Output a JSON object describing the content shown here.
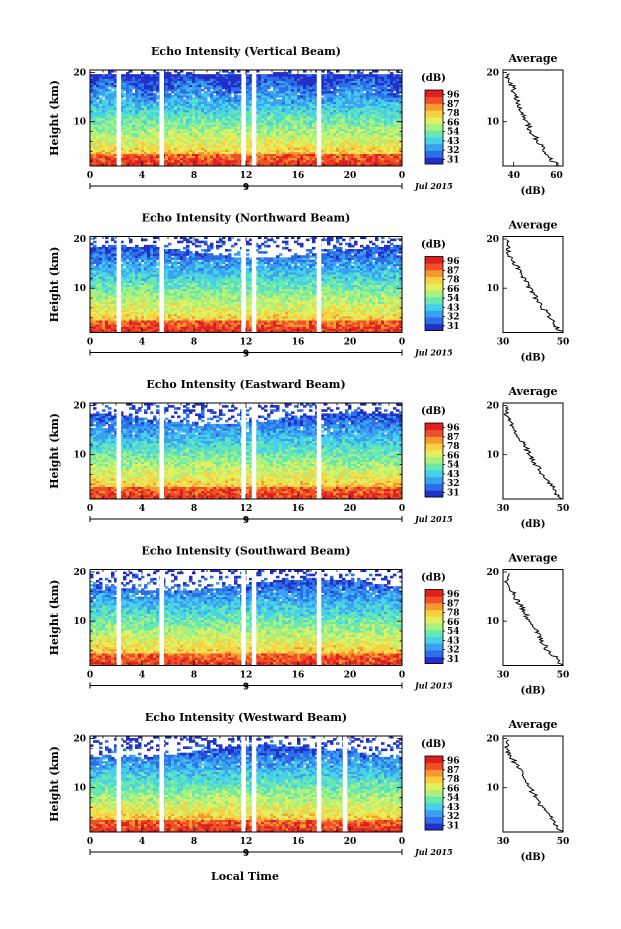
{
  "figure": {
    "xlabel": "Local Time",
    "colorbar_unit": "(dB)",
    "colorbar_ticks": [
      "31",
      "32",
      "43",
      "54",
      "66",
      "78",
      "87",
      "96"
    ],
    "colors": [
      "#2030c8",
      "#2c6ee8",
      "#3aa0f0",
      "#46d0ea",
      "#66e8b0",
      "#a8f080",
      "#e0f060",
      "#f8d040",
      "#f89830",
      "#f05028",
      "#e02020"
    ]
  },
  "chart_data": [
    {
      "type": "heatmap",
      "title": "Echo Intensity (Vertical Beam)",
      "ylabel": "Height (km)",
      "x_ticks": [
        "0",
        "4",
        "8",
        "12",
        "16",
        "20",
        "0"
      ],
      "y_ticks": [
        "10",
        "20"
      ],
      "xlim": [
        0,
        24
      ],
      "ylim": [
        1,
        20.5
      ],
      "date_label": "Jul 2015",
      "day_marker": "9",
      "gaps": [
        2.2,
        5.5,
        11.8,
        12.6,
        17.6
      ],
      "avg": {
        "title": "Average",
        "xlabel": "(dB)",
        "xlim": [
          35,
          63
        ],
        "x_ticks": [
          "40",
          "60"
        ],
        "y_ticks": [
          "10",
          "20"
        ],
        "height": [
          1,
          2,
          3,
          4,
          5,
          6,
          7,
          8,
          9,
          10,
          11,
          12,
          13,
          14,
          15,
          16,
          17,
          18,
          19,
          20
        ],
        "values": [
          62,
          58,
          57,
          54,
          53,
          51,
          50,
          48,
          47,
          46,
          45,
          44,
          43,
          42,
          41,
          40,
          40,
          38,
          37,
          37
        ]
      }
    },
    {
      "type": "heatmap",
      "title": "Echo Intensity (Northward Beam)",
      "ylabel": "Height (km)",
      "x_ticks": [
        "0",
        "4",
        "8",
        "12",
        "16",
        "20",
        "0"
      ],
      "y_ticks": [
        "10",
        "20"
      ],
      "xlim": [
        0,
        24
      ],
      "ylim": [
        1,
        20.5
      ],
      "date_label": "Jul 2015",
      "day_marker": "9",
      "gaps": [
        2.2,
        5.5,
        11.8,
        12.6,
        17.6
      ],
      "avg": {
        "title": "Average",
        "xlabel": "(dB)",
        "xlim": [
          30,
          50
        ],
        "x_ticks": [
          "30",
          "50"
        ],
        "y_ticks": [
          "10",
          "20"
        ],
        "height": [
          1,
          2,
          3,
          4,
          5,
          6,
          7,
          8,
          9,
          10,
          11,
          12,
          13,
          14,
          15,
          16,
          17,
          18,
          19,
          20
        ],
        "values": [
          50,
          48,
          47,
          46,
          45,
          43,
          42,
          41,
          40,
          39,
          38,
          37,
          36,
          35,
          34,
          33,
          32,
          32,
          31,
          32
        ]
      }
    },
    {
      "type": "heatmap",
      "title": "Echo Intensity (Eastward Beam)",
      "ylabel": "Height (km)",
      "x_ticks": [
        "0",
        "4",
        "8",
        "12",
        "16",
        "20",
        "0"
      ],
      "y_ticks": [
        "10",
        "20"
      ],
      "xlim": [
        0,
        24
      ],
      "ylim": [
        1,
        20.5
      ],
      "date_label": "Jul 2015",
      "day_marker": "9",
      "gaps": [
        2.2,
        5.5,
        11.8,
        12.6,
        17.6
      ],
      "avg": {
        "title": "Average",
        "xlabel": "(dB)",
        "xlim": [
          30,
          50
        ],
        "x_ticks": [
          "30",
          "50"
        ],
        "y_ticks": [
          "10",
          "20"
        ],
        "height": [
          1,
          2,
          3,
          4,
          5,
          6,
          7,
          8,
          9,
          10,
          11,
          12,
          13,
          14,
          15,
          16,
          17,
          18,
          19,
          20
        ],
        "values": [
          50,
          48,
          47,
          46,
          44,
          43,
          42,
          41,
          40,
          39,
          38,
          37,
          36,
          35,
          34,
          33,
          32,
          31,
          31,
          32
        ]
      }
    },
    {
      "type": "heatmap",
      "title": "Echo Intensity (Southward Beam)",
      "ylabel": "Height (km)",
      "x_ticks": [
        "0",
        "4",
        "8",
        "12",
        "16",
        "20",
        "0"
      ],
      "y_ticks": [
        "10",
        "20"
      ],
      "xlim": [
        0,
        24
      ],
      "ylim": [
        1,
        20.5
      ],
      "date_label": "Jul 2015",
      "day_marker": "9",
      "gaps": [
        2.2,
        5.5,
        11.8,
        12.6,
        17.6
      ],
      "avg": {
        "title": "Average",
        "xlabel": "(dB)",
        "xlim": [
          30,
          50
        ],
        "x_ticks": [
          "30",
          "50"
        ],
        "y_ticks": [
          "10",
          "20"
        ],
        "height": [
          1,
          2,
          3,
          4,
          5,
          6,
          7,
          8,
          9,
          10,
          11,
          12,
          13,
          14,
          15,
          16,
          17,
          18,
          19,
          20
        ],
        "values": [
          50,
          48,
          47,
          45,
          44,
          43,
          42,
          41,
          40,
          39,
          38,
          37,
          36,
          35,
          34,
          33,
          32,
          31,
          31,
          32
        ]
      }
    },
    {
      "type": "heatmap",
      "title": "Echo Intensity (Westward Beam)",
      "ylabel": "Height (km)",
      "x_ticks": [
        "0",
        "4",
        "8",
        "12",
        "16",
        "20",
        "0"
      ],
      "y_ticks": [
        "10",
        "20"
      ],
      "xlim": [
        0,
        24
      ],
      "ylim": [
        1,
        20.5
      ],
      "date_label": "Jul 2015",
      "day_marker": "9",
      "gaps": [
        2.2,
        5.5,
        11.8,
        12.6,
        17.6,
        19.6
      ],
      "avg": {
        "title": "Average",
        "xlabel": "(dB)",
        "xlim": [
          30,
          50
        ],
        "x_ticks": [
          "30",
          "50"
        ],
        "y_ticks": [
          "10",
          "20"
        ],
        "height": [
          1,
          2,
          3,
          4,
          5,
          6,
          7,
          8,
          9,
          10,
          11,
          12,
          13,
          14,
          15,
          16,
          17,
          18,
          19,
          20
        ],
        "values": [
          50,
          48,
          47,
          46,
          45,
          43,
          42,
          41,
          40,
          39,
          38,
          37,
          36,
          35,
          34,
          33,
          32,
          31,
          31,
          32
        ]
      }
    }
  ]
}
